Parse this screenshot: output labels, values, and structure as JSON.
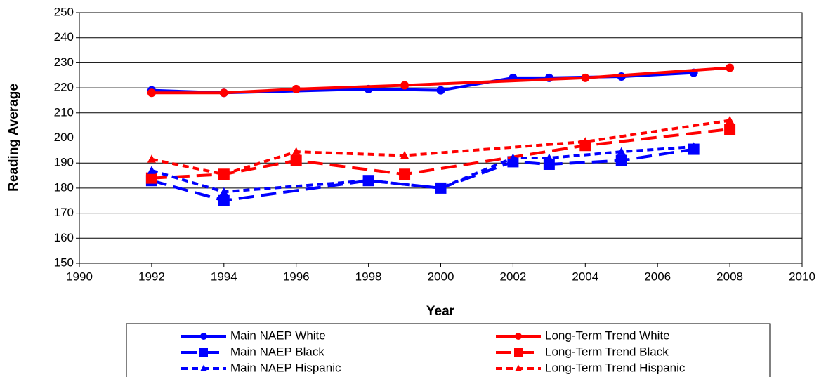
{
  "chart_data": {
    "type": "line",
    "xlabel": "Year",
    "ylabel": "Reading Average",
    "xlim": [
      1990,
      2010
    ],
    "xticks": [
      1990,
      1992,
      1994,
      1996,
      1998,
      2000,
      2002,
      2004,
      2006,
      2008,
      2010
    ],
    "ylim": [
      150,
      250
    ],
    "yticks": [
      150,
      160,
      170,
      180,
      190,
      200,
      210,
      220,
      230,
      240,
      250
    ],
    "grid": true,
    "legend": "bottom",
    "series": [
      {
        "name": "Main NAEP White",
        "color": "#0000ff",
        "marker": "circle",
        "dash": "solid",
        "x": [
          1992,
          1994,
          1998,
          2000,
          2002,
          2003,
          2005,
          2007
        ],
        "values": [
          219,
          218,
          219.5,
          219,
          224,
          224,
          224.5,
          226
        ]
      },
      {
        "name": "Long-Term Trend White",
        "color": "#ff0000",
        "marker": "circle",
        "dash": "solid",
        "x": [
          1992,
          1994,
          1996,
          1999,
          2004,
          2008
        ],
        "values": [
          218,
          218,
          219.5,
          221,
          224,
          228
        ]
      },
      {
        "name": "Main NAEP Black",
        "color": "#0000ff",
        "marker": "square",
        "dash": "long",
        "x": [
          1992,
          1994,
          1998,
          2000,
          2002,
          2003,
          2005,
          2007
        ],
        "values": [
          183,
          175,
          183,
          180,
          190.5,
          189.5,
          191,
          195.5
        ]
      },
      {
        "name": "Long-Term Trend Black",
        "color": "#ff0000",
        "marker": "square",
        "dash": "long",
        "x": [
          1992,
          1994,
          1996,
          1999,
          2004,
          2008
        ],
        "values": [
          184,
          185.5,
          191,
          185.5,
          197,
          203.5
        ]
      },
      {
        "name": "Main NAEP Hispanic",
        "color": "#0000ff",
        "marker": "triangle",
        "dash": "short",
        "x": [
          1992,
          1994,
          1998,
          2000,
          2002,
          2003,
          2005,
          2007
        ],
        "values": [
          187,
          178.5,
          183,
          180,
          192,
          192,
          194.5,
          196.5
        ]
      },
      {
        "name": "Long-Term Trend Hispanic",
        "color": "#ff0000",
        "marker": "triangle",
        "dash": "short",
        "x": [
          1992,
          1994,
          1996,
          1999,
          2004,
          2008
        ],
        "values": [
          191.5,
          185.5,
          194.5,
          193,
          198.5,
          207
        ]
      }
    ]
  }
}
